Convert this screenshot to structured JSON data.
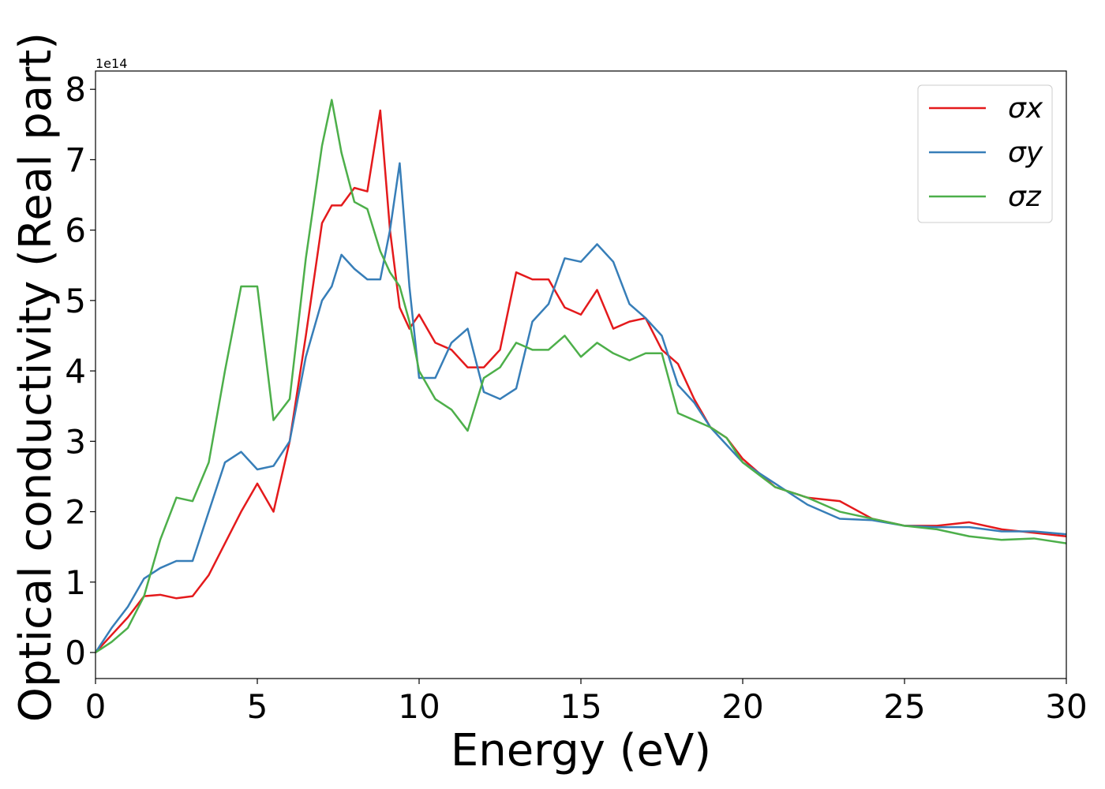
{
  "chart_data": {
    "type": "line",
    "xlabel": "Energy (eV)",
    "ylabel": "Optical conductivity (Real part)",
    "offset_label": "1e14",
    "x": [
      0,
      0.5,
      1,
      1.5,
      2,
      2.5,
      3,
      3.5,
      4,
      4.5,
      5,
      5.5,
      6,
      6.5,
      7,
      7.3,
      7.6,
      8,
      8.4,
      8.8,
      9.1,
      9.4,
      9.7,
      10,
      10.5,
      11,
      11.5,
      12,
      12.5,
      13,
      13.5,
      14,
      14.5,
      15,
      15.5,
      16,
      16.5,
      17,
      17.5,
      18,
      18.5,
      19,
      19.5,
      20,
      21,
      22,
      23,
      24,
      25,
      26,
      27,
      28,
      29,
      30
    ],
    "series": [
      {
        "name": "σx",
        "color": "#e41a1c",
        "values": [
          0,
          0.25,
          0.5,
          0.8,
          0.82,
          0.77,
          0.8,
          1.1,
          1.55,
          2.0,
          2.4,
          2.0,
          3.0,
          4.5,
          6.1,
          6.35,
          6.35,
          6.6,
          6.55,
          7.7,
          6.0,
          4.9,
          4.6,
          4.8,
          4.4,
          4.3,
          4.05,
          4.05,
          4.3,
          5.4,
          5.3,
          5.3,
          4.9,
          4.8,
          5.15,
          4.6,
          4.7,
          4.75,
          4.3,
          4.1,
          3.6,
          3.2,
          3.05,
          2.75,
          2.35,
          2.2,
          2.15,
          1.9,
          1.8,
          1.8,
          1.85,
          1.75,
          1.7,
          1.65
        ]
      },
      {
        "name": "σy",
        "color": "#377eb8",
        "values": [
          0,
          0.35,
          0.65,
          1.05,
          1.2,
          1.3,
          1.3,
          2.0,
          2.7,
          2.85,
          2.6,
          2.65,
          3.0,
          4.2,
          5.0,
          5.2,
          5.65,
          5.45,
          5.3,
          5.3,
          6.0,
          6.95,
          5.2,
          3.9,
          3.9,
          4.4,
          4.6,
          3.7,
          3.6,
          3.75,
          4.7,
          4.95,
          5.6,
          5.55,
          5.8,
          5.55,
          4.95,
          4.75,
          4.5,
          3.8,
          3.55,
          3.2,
          2.95,
          2.7,
          2.4,
          2.1,
          1.9,
          1.88,
          1.8,
          1.78,
          1.78,
          1.72,
          1.72,
          1.68
        ]
      },
      {
        "name": "σz",
        "color": "#4daf4a",
        "values": [
          0,
          0.15,
          0.35,
          0.8,
          1.6,
          2.2,
          2.15,
          2.7,
          4.0,
          5.2,
          5.2,
          3.3,
          3.6,
          5.6,
          7.2,
          7.85,
          7.1,
          6.4,
          6.3,
          5.7,
          5.4,
          5.2,
          4.7,
          4.0,
          3.6,
          3.45,
          3.15,
          3.9,
          4.05,
          4.4,
          4.3,
          4.3,
          4.5,
          4.2,
          4.4,
          4.25,
          4.15,
          4.25,
          4.25,
          3.4,
          3.3,
          3.2,
          3.05,
          2.7,
          2.35,
          2.2,
          2.0,
          1.9,
          1.8,
          1.75,
          1.65,
          1.6,
          1.62,
          1.55
        ]
      }
    ],
    "xlim": [
      0,
      30
    ],
    "xticks": [
      0,
      5,
      10,
      15,
      20,
      25,
      30
    ],
    "ylim": [
      -0.37,
      8.26
    ],
    "yticks": [
      0,
      1,
      2,
      3,
      4,
      5,
      6,
      7,
      8
    ],
    "legend": "upper right",
    "grid": false
  }
}
